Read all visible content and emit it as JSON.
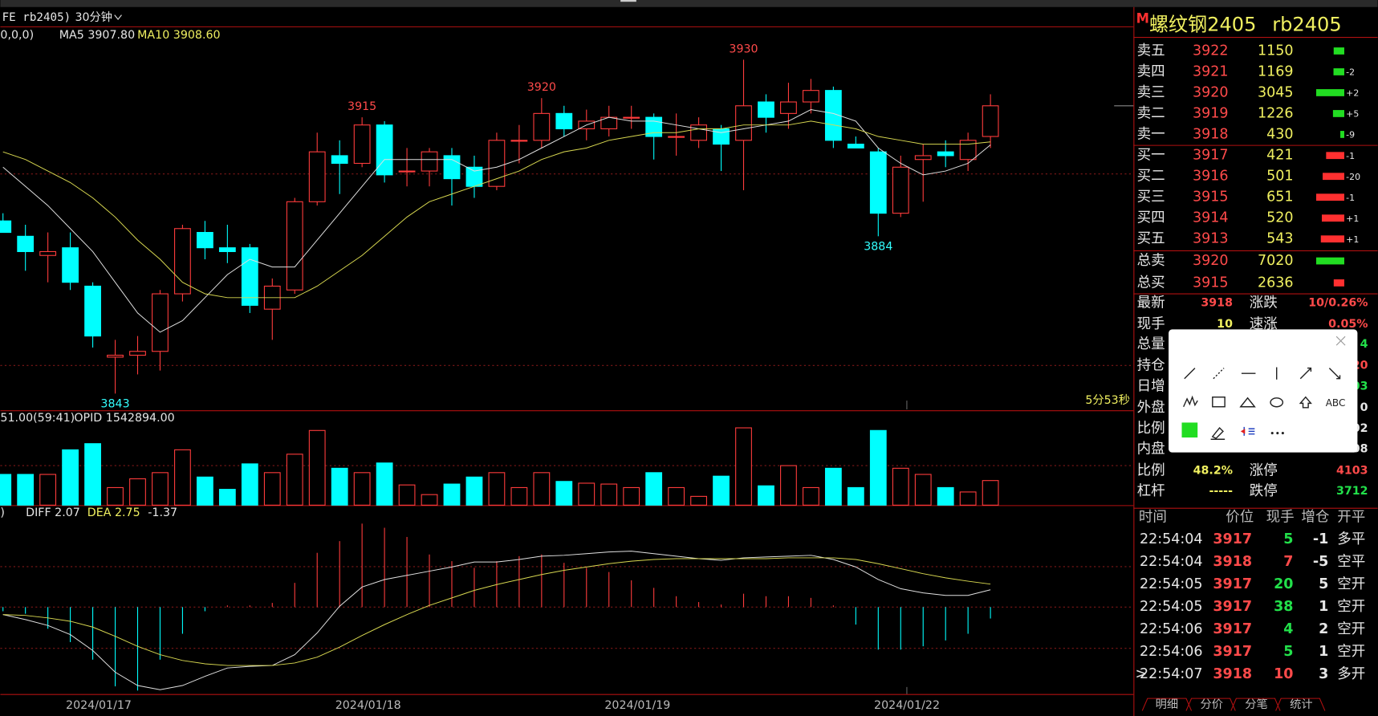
{
  "header": {
    "symbol": "FE rb2405)",
    "period": "30分钟",
    "ma_params": "0,0,0)",
    "ma5": "MA5 3907.80",
    "ma10": "MA10 3908.60",
    "volume_info": "51.00(59:41)",
    "opid": "OPID 1542894.00",
    "macd_params": ")",
    "diff": "DIFF 2.07",
    "dea": "DEA 2.75",
    "macd": "-1.37",
    "timer": "5分53秒"
  },
  "price_chart": {
    "type": "candlestick",
    "open": [
      3888,
      3884,
      3879,
      3881,
      3871,
      3852.5,
      3853,
      3854,
      3869,
      3885,
      3881,
      3881,
      3865,
      3870,
      3893,
      3905,
      3903,
      3913,
      3901,
      3901,
      3905,
      3902,
      3897,
      3909,
      3909,
      3916,
      3912,
      3912,
      3915,
      3915,
      3910,
      3909,
      3912,
      3909,
      3919,
      3916,
      3919,
      3922,
      3908,
      3906,
      3890,
      3904,
      3906,
      3904,
      3910
    ],
    "high": [
      3890,
      3887,
      3885,
      3885,
      3872,
      3857,
      3858,
      3870,
      3887,
      3888,
      3887,
      3882,
      3873,
      3894,
      3911,
      3909,
      3915,
      3914,
      3907,
      3907,
      3907,
      3905,
      3911,
      3913,
      3920,
      3918,
      3917,
      3918,
      3918,
      3916,
      3916,
      3915,
      3913,
      3930,
      3921,
      3924,
      3925,
      3923,
      3910,
      3907,
      3905,
      3908,
      3909,
      3911,
      3921
    ],
    "low": [
      3885,
      3875,
      3872,
      3870,
      3855,
      3843,
      3848,
      3849,
      3867,
      3878,
      3877,
      3864,
      3857,
      3869,
      3892,
      3895,
      3902,
      3898,
      3897,
      3897,
      3892,
      3894,
      3896,
      3903,
      3907,
      3910,
      3909,
      3910,
      3912,
      3904,
      3905,
      3907,
      3901,
      3896,
      3911,
      3912,
      3916,
      3907,
      3907,
      3884,
      3889,
      3893,
      3902,
      3901,
      3907
    ],
    "close": [
      3885,
      3880,
      3880,
      3872,
      3858,
      3853,
      3854,
      3869,
      3886,
      3881,
      3880,
      3866,
      3871,
      3893,
      3906,
      3903,
      3913,
      3900,
      3901,
      3906,
      3899,
      3897,
      3909,
      3909,
      3916,
      3912,
      3914,
      3915,
      3915,
      3910,
      3910,
      3913,
      3908,
      3918,
      3915,
      3919,
      3922,
      3909,
      3907,
      3890,
      3902,
      3905,
      3905,
      3909,
      3918
    ],
    "ma5": [
      3902,
      3897,
      3892,
      3886,
      3880,
      3872,
      3864,
      3859,
      3862,
      3868,
      3874,
      3878,
      3876,
      3876,
      3883,
      3890,
      3897,
      3904,
      3904,
      3904,
      3904,
      3901,
      3902,
      3904,
      3907,
      3910,
      3913,
      3915,
      3914,
      3914,
      3913,
      3912,
      3911,
      3912,
      3913,
      3914,
      3917,
      3916,
      3914,
      3907,
      3903,
      3900,
      3901,
      3903,
      3907.8
    ],
    "ma10": [
      3906,
      3904,
      3901,
      3898,
      3894,
      3889,
      3883,
      3878,
      3872,
      3869,
      3868,
      3868,
      3868,
      3868,
      3871,
      3875,
      3879,
      3884,
      3889,
      3893,
      3895,
      3897,
      3899,
      3901,
      3904,
      3906,
      3907,
      3909,
      3910,
      3911,
      3911,
      3912,
      3912,
      3913,
      3913,
      3913,
      3914,
      3913,
      3912,
      3910,
      3909,
      3908,
      3908,
      3908,
      3908.6
    ],
    "high_labels": [
      3915,
      3920,
      3930
    ],
    "low_labels": [
      3884,
      3843
    ]
  },
  "volume_chart": {
    "type": "bar",
    "values": [
      35,
      35,
      35,
      63,
      70,
      20,
      30,
      37,
      63,
      32,
      18,
      47,
      37,
      58,
      85,
      42,
      37,
      48,
      23,
      12,
      24,
      32,
      37,
      20,
      37,
      27,
      25,
      24,
      20,
      37,
      20,
      10,
      33,
      88,
      22,
      45,
      20,
      42,
      20,
      85,
      42,
      35,
      20,
      15,
      28
    ]
  },
  "macd_chart": {
    "type": "macd",
    "histogram": [
      -0.5,
      -0.8,
      -2.6,
      -4.2,
      -6.3,
      -9.5,
      -10,
      -6.3,
      -3.2,
      -0.5,
      0.2,
      0.2,
      0.5,
      2.9,
      6.5,
      7.9,
      10,
      9.5,
      8.4,
      6.3,
      5.5,
      4.7,
      5.5,
      6.1,
      6.3,
      5.3,
      4.7,
      4.2,
      3.2,
      2.3,
      1.3,
      0.6,
      0.3,
      1.6,
      1.3,
      1.3,
      1.1,
      0.2,
      -2.1,
      -5.1,
      -5.1,
      -4.7,
      -4,
      -3.2,
      -1.37
    ],
    "diff": [
      -0.9,
      -1.5,
      -2.2,
      -3.3,
      -5.2,
      -7.8,
      -9.4,
      -9.9,
      -9.4,
      -8.3,
      -7.3,
      -7.1,
      -7,
      -5.7,
      -3.1,
      0.1,
      2.4,
      3.3,
      3.8,
      4.3,
      4.8,
      5.4,
      5.4,
      5.7,
      6.1,
      6.2,
      6.4,
      6.6,
      6.7,
      6.4,
      6.1,
      5.8,
      5.6,
      5.9,
      6,
      6.1,
      6.2,
      5.7,
      4.8,
      3.3,
      2.2,
      1.7,
      1.4,
      1.4,
      2.07
    ],
    "dea": [
      -0.9,
      -1,
      -1.3,
      -1.7,
      -2.4,
      -3.5,
      -4.7,
      -5.7,
      -6.4,
      -6.8,
      -7,
      -7,
      -7,
      -6.7,
      -6,
      -4.8,
      -3.4,
      -2.1,
      -0.9,
      0.2,
      1.1,
      2,
      2.7,
      3.3,
      3.9,
      4.4,
      4.8,
      5.2,
      5.5,
      5.7,
      5.8,
      5.8,
      5.8,
      5.8,
      5.8,
      5.9,
      5.9,
      5.9,
      5.7,
      5.2,
      4.6,
      4,
      3.5,
      3.1,
      2.75
    ]
  },
  "dates": [
    "2024/01/17",
    "2024/01/18",
    "2024/01/19",
    "2024/01/22"
  ],
  "quote": {
    "flag": "M",
    "name": "螺纹钢2405",
    "code": "rb2405"
  },
  "asks": [
    {
      "label": "卖五",
      "price": 3922,
      "volume": 1150
    },
    {
      "label": "卖四",
      "price": 3921,
      "volume": 1169,
      "change": "-2"
    },
    {
      "label": "卖三",
      "price": 3920,
      "volume": 3045,
      "change": "+2"
    },
    {
      "label": "卖二",
      "price": 3919,
      "volume": 1226,
      "change": "+5"
    },
    {
      "label": "卖一",
      "price": 3918,
      "volume": 430,
      "change": "-9"
    }
  ],
  "bids": [
    {
      "label": "买一",
      "price": 3917,
      "volume": 421,
      "change": "-1"
    },
    {
      "label": "买二",
      "price": 3916,
      "volume": 501,
      "change": "-20"
    },
    {
      "label": "买三",
      "price": 3915,
      "volume": 651,
      "change": "-1"
    },
    {
      "label": "买四",
      "price": 3914,
      "volume": 520,
      "change": "+1"
    },
    {
      "label": "买五",
      "price": 3913,
      "volume": 543,
      "change": "+1"
    }
  ],
  "totals": [
    {
      "label": "总卖",
      "price": 3920,
      "volume": 7020,
      "color": "g"
    },
    {
      "label": "总买",
      "price": 3915,
      "volume": 2636,
      "color": "r"
    }
  ],
  "stats": [
    {
      "label": "最新",
      "value": "3918",
      "color": "r",
      "label2": "涨跌",
      "value2": "10/0.26%",
      "color2": "r"
    },
    {
      "label": "现手",
      "value": "10",
      "color": "y",
      "label2": "速涨",
      "value2": "0.05%",
      "color2": "r"
    },
    {
      "label": "总量",
      "value2": "4",
      "color2": "g"
    },
    {
      "label": "持仓",
      "value2": "20",
      "color2": "r"
    },
    {
      "label": "日增",
      "value2": "03",
      "color2": "g"
    },
    {
      "label": "外盘",
      "value2": "0",
      "color2": "w"
    },
    {
      "label": "比例",
      "value2": "02",
      "color2": "w"
    },
    {
      "label": "内盘",
      "value2": "08",
      "color2": "w"
    },
    {
      "label": "比例",
      "value": "48.2%",
      "color": "y",
      "label2": "涨停",
      "value2": "4103",
      "color2": "r"
    },
    {
      "label": "杠杆",
      "value": "-----",
      "color": "y",
      "label2": "跌停",
      "value2": "3712",
      "color2": "g"
    }
  ],
  "ticks_header": [
    "时间",
    "价位",
    "现手",
    "增仓",
    "开平"
  ],
  "ticks": [
    {
      "time": "22:54:04",
      "price": 3917,
      "qty": 5,
      "qty_color": "g",
      "change": -1,
      "type": "多平"
    },
    {
      "time": "22:54:04",
      "price": 3918,
      "qty": 7,
      "qty_color": "r",
      "change": -5,
      "type": "空平"
    },
    {
      "time": "22:54:05",
      "price": 3917,
      "qty": 20,
      "qty_color": "g",
      "change": 5,
      "type": "空开"
    },
    {
      "time": "22:54:05",
      "price": 3917,
      "qty": 38,
      "qty_color": "g",
      "change": 1,
      "type": "空开"
    },
    {
      "time": "22:54:06",
      "price": 3917,
      "qty": 4,
      "qty_color": "g",
      "change": 2,
      "type": "空开"
    },
    {
      "time": "22:54:06",
      "price": 3917,
      "qty": 5,
      "qty_color": "g",
      "change": 1,
      "type": "空开"
    },
    {
      "marker": ">",
      "time": "22:54:07",
      "price": 3918,
      "qty": 10,
      "qty_color": "r",
      "change": 3,
      "type": "多开"
    }
  ],
  "tabs": [
    "明细",
    "分价",
    "分笔",
    "统计"
  ],
  "toolbar": {
    "text_tool": "ABC"
  }
}
